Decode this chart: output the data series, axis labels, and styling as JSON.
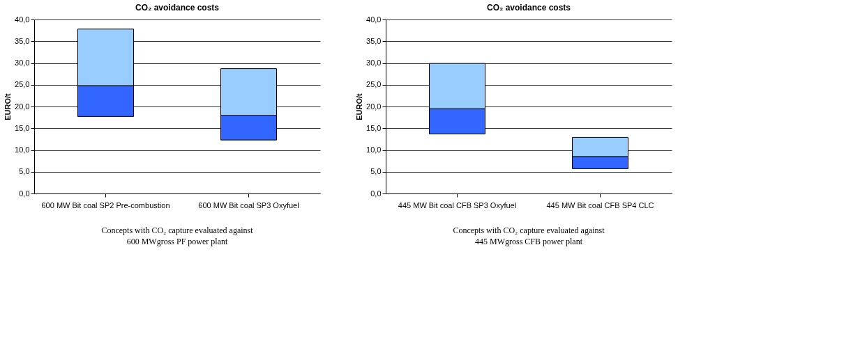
{
  "chart_data": [
    {
      "type": "bar",
      "title": "CO₂ avoidance costs",
      "ylabel": "EURO/t",
      "categories": [
        "600 MW Bit coal SP2 Pre-combustion",
        "600 MW Bit coal SP3 Oxyfuel"
      ],
      "series": [
        {
          "color": "#3366ff",
          "base": [
            17.7,
            12.3
          ],
          "values": [
            7.1,
            5.7
          ]
        },
        {
          "color": "#99ccff",
          "base": [
            24.8,
            18.0
          ],
          "values": [
            13.0,
            10.7
          ]
        }
      ],
      "ylim": [
        0,
        40
      ],
      "yticks": [
        {
          "value": 0,
          "label": "0,0"
        },
        {
          "value": 5,
          "label": "5,0"
        },
        {
          "value": 10,
          "label": "10,0"
        },
        {
          "value": 15,
          "label": "15,0"
        },
        {
          "value": 20,
          "label": "20,0"
        },
        {
          "value": 25,
          "label": "25,0"
        },
        {
          "value": 30,
          "label": "30,0"
        },
        {
          "value": 35,
          "label": "35,0"
        },
        {
          "value": 40,
          "label": "40,0"
        }
      ],
      "grid": "y",
      "annotations": [
        "Concepts with CO₂ capture evaluated against",
        "600 MWgross PF power plant"
      ]
    },
    {
      "type": "bar",
      "title": "CO₂ avoidance costs",
      "ylabel": "EURO/t",
      "categories": [
        "445 MW Bit coal CFB SP3 Oxyfuel",
        "445 MW Bit coal CFB SP4 CLC"
      ],
      "series": [
        {
          "color": "#3366ff",
          "base": [
            13.7,
            5.7
          ],
          "values": [
            5.8,
            2.8
          ]
        },
        {
          "color": "#99ccff",
          "base": [
            19.5,
            8.5
          ],
          "values": [
            10.4,
            4.4
          ]
        }
      ],
      "ylim": [
        0,
        40
      ],
      "yticks": [
        {
          "value": 0,
          "label": "0,0"
        },
        {
          "value": 5,
          "label": "5,0"
        },
        {
          "value": 10,
          "label": "10,0"
        },
        {
          "value": 15,
          "label": "15,0"
        },
        {
          "value": 20,
          "label": "20,0"
        },
        {
          "value": 25,
          "label": "25,0"
        },
        {
          "value": 30,
          "label": "30,0"
        },
        {
          "value": 35,
          "label": "35,0"
        },
        {
          "value": 40,
          "label": "40,0"
        }
      ],
      "grid": "y",
      "annotations": [
        "Concepts with CO₂ capture evaluated against",
        "445 MWgross CFB power plant"
      ]
    }
  ]
}
